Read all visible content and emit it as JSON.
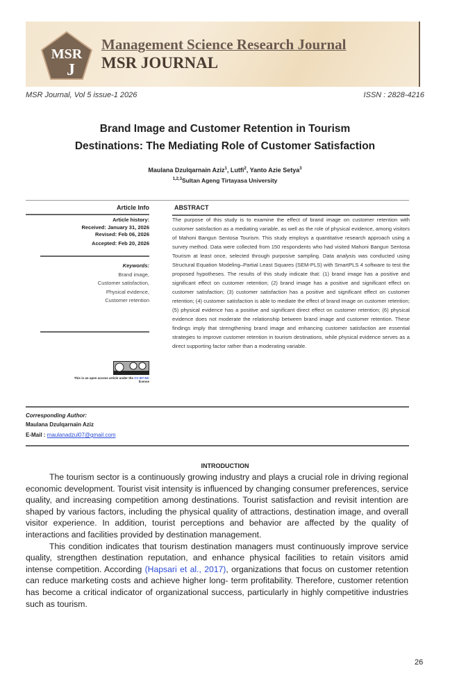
{
  "header": {
    "journal_full": "Management Science Research Journal",
    "journal_short": "MSR JOURNAL",
    "logo_text": "MSRJ",
    "volume": "MSR Journal, Vol 5 issue-1 2026",
    "issn": "ISSN : 2828-4216"
  },
  "article": {
    "title_line1": "Brand Image and Customer Retention in Tourism",
    "title_line2": "Destinations: The Mediating Role of Customer Satisfaction",
    "authors": [
      {
        "name": "Maulana Dzulqarnain Aziz",
        "sup": "1"
      },
      {
        "name": "Lutfi",
        "sup": "2"
      },
      {
        "name": "Yanto Azie Setya",
        "sup": "3"
      }
    ],
    "affiliation_sup": "1,2,3",
    "affiliation": "Sultan Ageng Tirtayasa University"
  },
  "info": {
    "heading": "Article Info",
    "history_label": "Article history:",
    "received": "Received: January 31, 2026",
    "revised": "Revised: Feb 06, 2026",
    "accepted": "Accepted: Feb 20, 2026",
    "keywords_label": "Keywords:",
    "keywords": [
      "Brand image,",
      "Customer satisfaction,",
      "Physical evidence,",
      "Customer retention"
    ],
    "license_text": "This is an open access article under the",
    "license_link": "CC BY-NC",
    "license_suffix": "license"
  },
  "abstract": {
    "heading": "ABSTRACT",
    "text": "The purpose of this study is to examine the effect of brand image on customer retention with customer satisfaction as a mediating variable, as well as the role of physical evidence, among visitors of Mahoni Bangun Sentosa Tourism. This study employs a quantitative research approach using a survey method. Data were collected from 150 respondents who had visited Mahoni Bangun Sentosa Tourism at least once, selected through purposive sampling. Data analysis was conducted using Structural Equation Modeling–Partial Least Squares (SEM-PLS) with SmartPLS 4 software to test the proposed hypotheses. The results of this study indicate that: (1) brand image has a positive and significant effect on customer retention; (2) brand image has a positive and significant effect on customer satisfaction; (3) customer satisfaction has a positive and significant effect on customer retention; (4) customer satisfaction is able to mediate the effect of brand image on customer retention; (5) physical evidence has a positive and significant direct effect on customer retention; (6) physical evidence does not moderate the relationship between brand image and customer retention. These findings imply that strengthening brand image and enhancing customer satisfaction are essential strategies to improve customer retention in tourism destinations, while physical evidence serves as a direct supporting factor rather than a moderating variable."
  },
  "corresponding": {
    "label": "Corresponding Author:",
    "name": "Maulana Dzulqarnain Aziz",
    "email_label": "E-Mail : ",
    "email": "maulanadzul07@gmail.com"
  },
  "introduction": {
    "heading": "INTRODUCTION",
    "p1": "The tourism sector is a continuously growing industry and plays a crucial role in driving regional economic development. Tourist visit intensity is influenced by changing consumer preferences, service quality, and increasing competition among destinations. Tourist satisfaction and revisit intention are shaped by various factors, including the physical quality of attractions, destination image, and overall visitor experience. In addition, tourist perceptions and behavior are affected by the quality of interactions and facilities provided by destination management.",
    "p2_before": "This condition indicates that tourism destination managers must continuously improve service quality, strengthen destination reputation, and enhance physical facilities to retain visitors amid intense competition. According ",
    "p2_cite": "(Hapsari et al., 2017)",
    "p2_after": ", organizations that focus on customer retention can reduce marketing costs and achieve higher long- term profitability. Therefore, customer retention has become a critical indicator of organizational success, particularly in highly competitive industries such as tourism."
  },
  "page_number": "26",
  "colors": {
    "accent_brown": "#6b5a4f",
    "link": "#2a4bd7"
  }
}
